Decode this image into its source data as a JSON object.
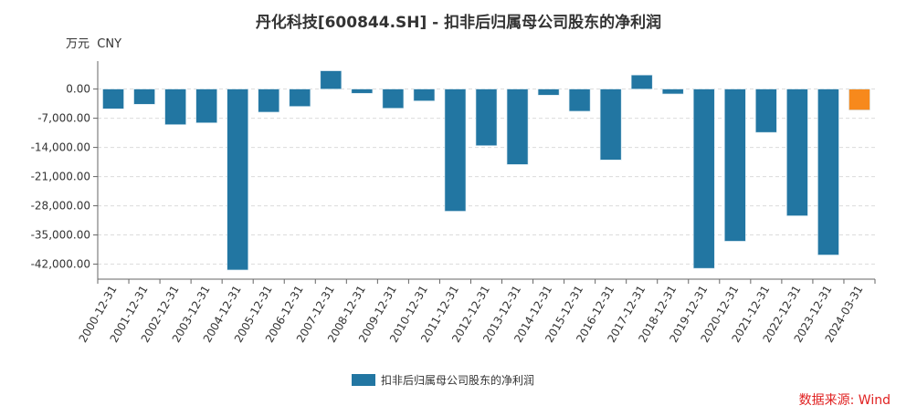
{
  "chart_data": {
    "type": "bar",
    "title": "丹化科技[600844.SH] - 扣非后归属母公司股东的净利润",
    "ylabel": "万元  CNY",
    "xlabel": "",
    "categories": [
      "2000-12-31",
      "2001-12-31",
      "2002-12-31",
      "2003-12-31",
      "2004-12-31",
      "2005-12-31",
      "2006-12-31",
      "2007-12-31",
      "2008-12-31",
      "2009-12-31",
      "2010-12-31",
      "2011-12-31",
      "2012-12-31",
      "2013-12-31",
      "2014-12-31",
      "2015-12-31",
      "2016-12-31",
      "2017-12-31",
      "2018-12-31",
      "2019-12-31",
      "2020-12-31",
      "2021-12-31",
      "2022-12-31",
      "2023-12-31",
      "2024-03-31"
    ],
    "values": [
      -4740,
      -3650,
      -8530,
      -8100,
      -43400,
      -5540,
      -4160,
      4380,
      -1020,
      -4600,
      -2840,
      -29300,
      -13570,
      -18100,
      -1460,
      -5320,
      -17000,
      3360,
      -1170,
      -43000,
      -36500,
      -10400,
      -30400,
      -39800,
      -5030
    ],
    "yticks": [
      0,
      -7000,
      -14000,
      -21000,
      -28000,
      -35000,
      -42000
    ],
    "ytick_labels": [
      "0.00",
      "-7,000.00",
      "-14,000.00",
      "-21,000.00",
      "-28,000.00",
      "-35,000.00",
      "-42,000.00"
    ],
    "ylim": [
      -45600,
      6700
    ],
    "grid": true,
    "legend": {
      "entries": [
        "扣非后归属母公司股东的净利润"
      ],
      "placement": "bottom-center"
    },
    "colors": {
      "bar": "#2276a2",
      "highlight": "#f7891c"
    },
    "highlight_last": true,
    "source": "数据来源: Wind"
  }
}
